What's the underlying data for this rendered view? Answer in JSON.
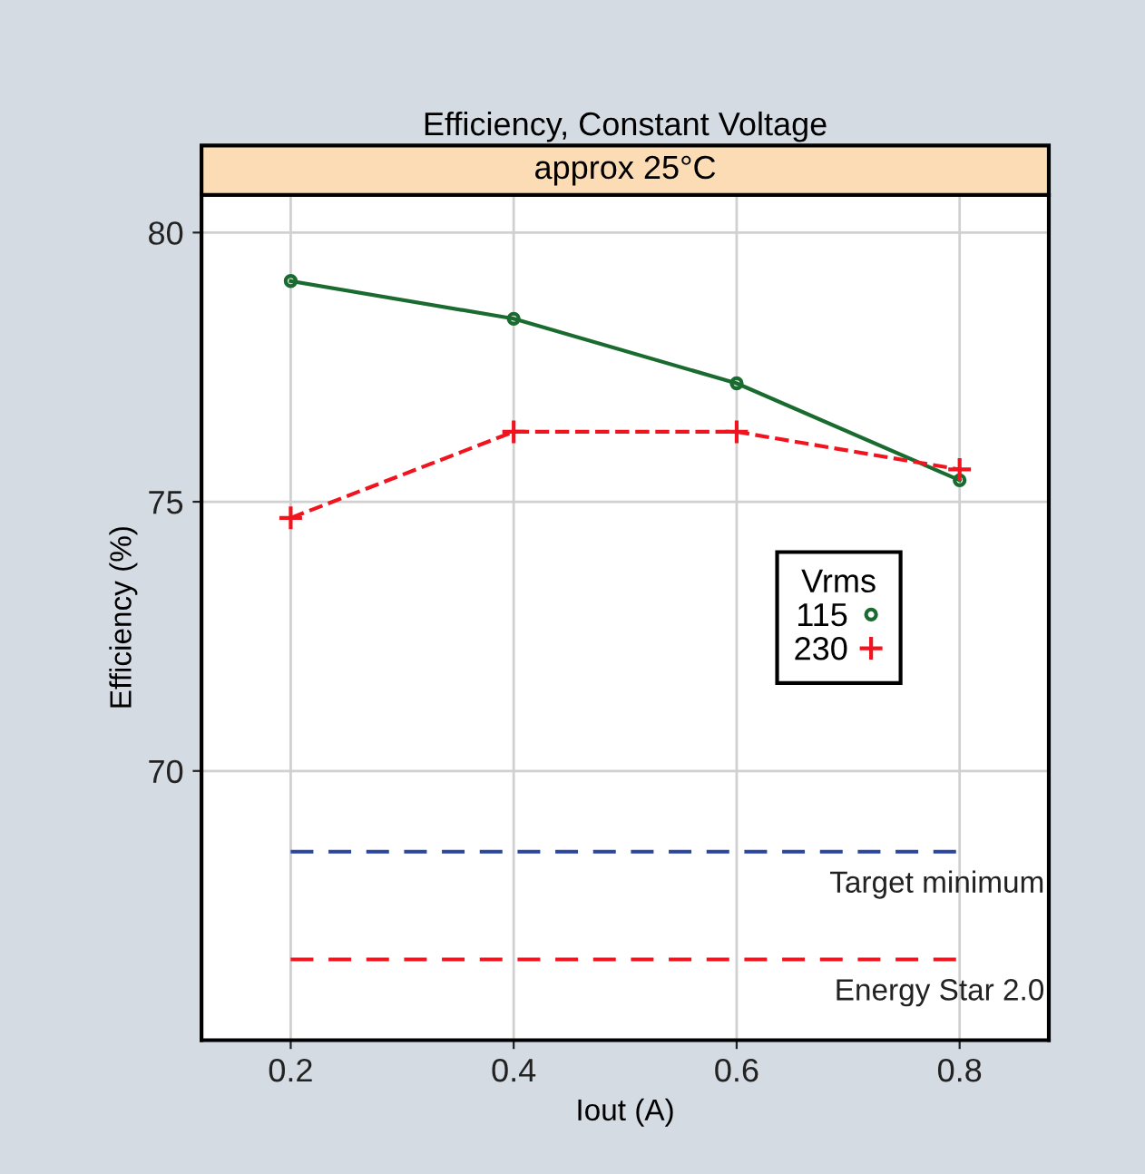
{
  "chart_data": {
    "type": "line",
    "title": "Efficiency, Constant Voltage",
    "subtitle": "approx 25°C",
    "xlabel": "Iout (A)",
    "ylabel": "Efficiency (%)",
    "legend_title": "Vrms",
    "x": [
      0.2,
      0.4,
      0.6,
      0.8
    ],
    "series": [
      {
        "name": "115",
        "color": "#1a6b30",
        "values": [
          79.1,
          78.4,
          77.2,
          75.4
        ],
        "marker": "circle",
        "line_style": "solid"
      },
      {
        "name": "230",
        "color": "#f0141e",
        "values": [
          74.7,
          76.3,
          76.3,
          75.6
        ],
        "marker": "cross",
        "line_style": "dashed"
      }
    ],
    "ref_lines": [
      {
        "axis": "y",
        "value": 68.5,
        "label": "Target minimum",
        "color": "#2a45a0",
        "line_style": "dashed"
      },
      {
        "axis": "y",
        "value": 66.5,
        "label": "Energy Star 2.0",
        "color": "#f0141e",
        "line_style": "dashed"
      }
    ],
    "xlim": [
      0.12,
      0.88
    ],
    "ylim": [
      65,
      80.7
    ],
    "xticks": [
      0.2,
      0.4,
      0.6,
      0.8
    ],
    "yticks": [
      70,
      75,
      80
    ],
    "grid": true,
    "legend": "right"
  }
}
